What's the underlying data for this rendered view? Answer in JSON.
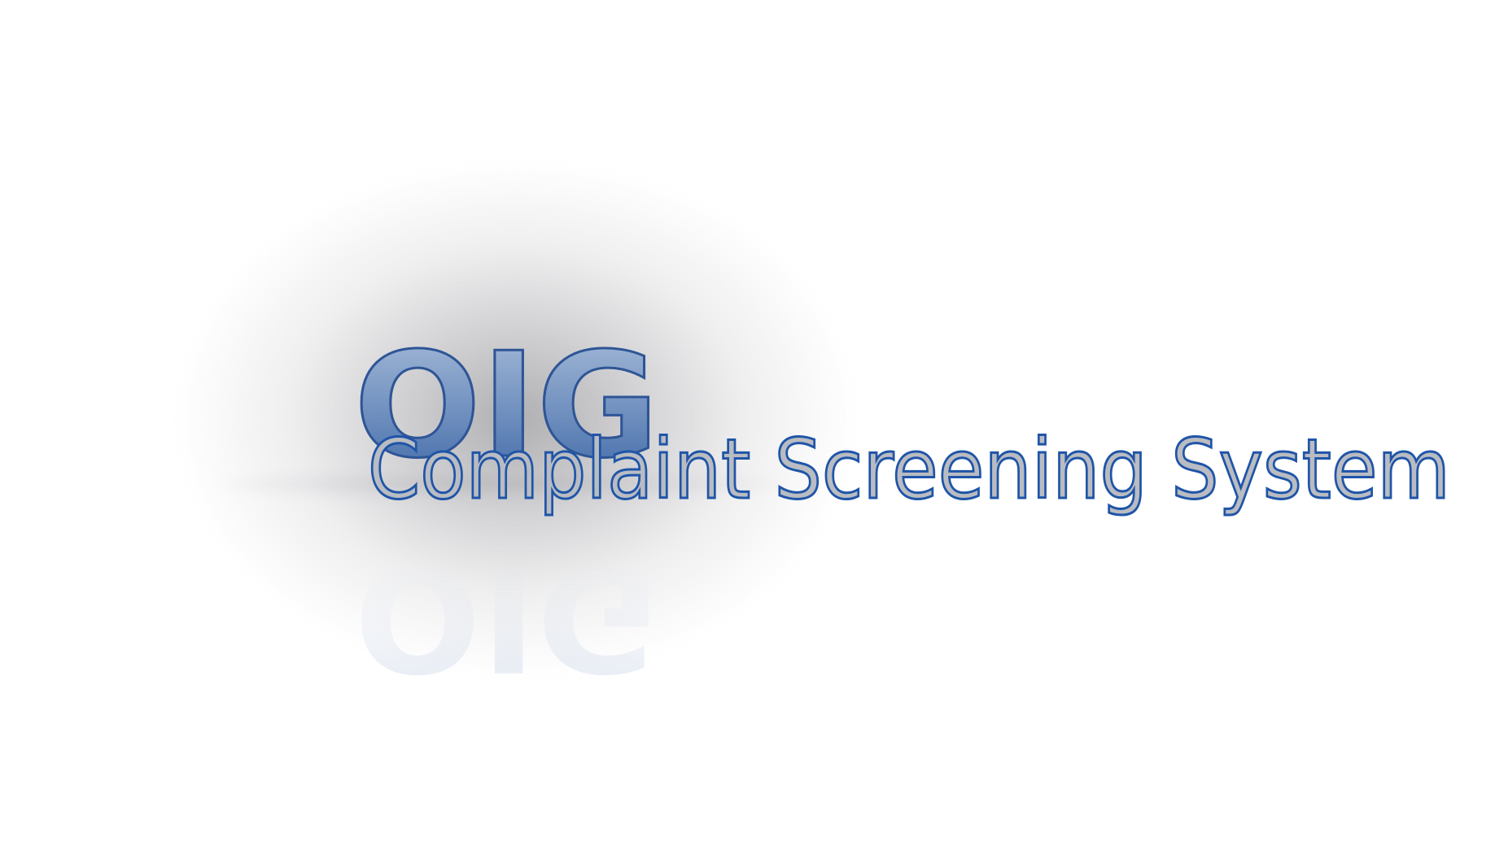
{
  "logo": {
    "acronym": "OIG",
    "system_name": "Complaint Screening System"
  },
  "colors": {
    "acronym_fill_top": "#9fb6d4",
    "acronym_fill_bottom": "#3f6aa8",
    "acronym_stroke": "#2e5596",
    "system_name_fill": "#b9bcc2",
    "system_name_stroke": "#1f55a8",
    "background": "#ffffff"
  }
}
